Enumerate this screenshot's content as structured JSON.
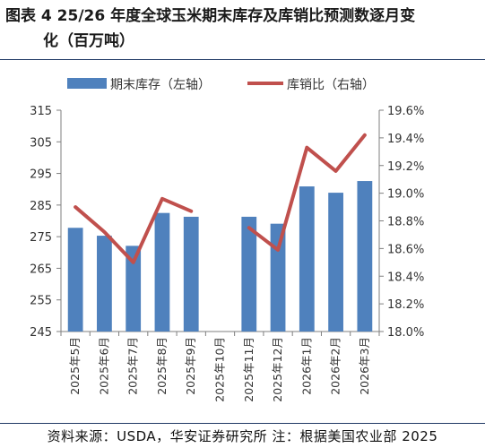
{
  "title": {
    "line1": "图表 4 25/26 年度全球玉米期末库存及库销比预测数逐月变",
    "line2": "化（百万吨）"
  },
  "source": "资料来源：USDA，华安证券研究所 注：根据美国农业部 2025",
  "colors": {
    "bar": "#4f81bd",
    "line": "#c0504d",
    "rule": "#1f3864"
  },
  "chart_data": {
    "type": "bar",
    "categories": [
      "2025年5月",
      "2025年6月",
      "2025年7月",
      "2025年8月",
      "2025年9月",
      "2025年10月",
      "2025年11月",
      "2025年12月",
      "2026年1月",
      "2026年2月",
      "2026年3月"
    ],
    "series": [
      {
        "name": "期末库存（左轴）",
        "type": "bar",
        "axis": "left",
        "values": [
          277.8,
          275.3,
          272.1,
          282.5,
          281.3,
          null,
          281.3,
          279.1,
          290.9,
          288.9,
          292.6
        ]
      },
      {
        "name": "库销比（右轴）",
        "type": "line",
        "axis": "right",
        "values": [
          18.9,
          18.72,
          18.5,
          18.96,
          18.87,
          null,
          18.75,
          18.59,
          19.33,
          19.16,
          19.42
        ]
      }
    ],
    "ylim_left": [
      245,
      315
    ],
    "yticks_left": [
      "245",
      "255",
      "265",
      "275",
      "285",
      "295",
      "305",
      "315"
    ],
    "ylim_right": [
      18.0,
      19.6
    ],
    "yticks_right": [
      "18.0%",
      "18.2%",
      "18.4%",
      "18.6%",
      "18.8%",
      "19.0%",
      "19.2%",
      "19.4%",
      "19.6%"
    ],
    "legend_position": "top",
    "grid": false
  }
}
